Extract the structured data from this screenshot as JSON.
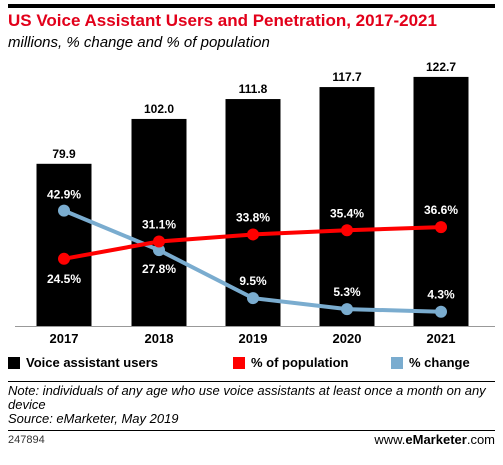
{
  "title": "US Voice Assistant Users and Penetration, 2017-2021",
  "subtitle": "millions, % change and % of population",
  "chart_data": {
    "type": "bar",
    "categories": [
      "2017",
      "2018",
      "2019",
      "2020",
      "2021"
    ],
    "series": [
      {
        "name": "Voice assistant users",
        "type": "bar",
        "color": "#000000",
        "values": [
          79.9,
          102.0,
          111.8,
          117.7,
          122.7
        ],
        "labels": [
          "79.9",
          "102.0",
          "111.8",
          "117.7",
          "122.7"
        ]
      },
      {
        "name": "% of population",
        "type": "line",
        "color": "#ff0000",
        "values": [
          24.5,
          31.1,
          33.8,
          35.4,
          36.6
        ],
        "labels": [
          "24.5%",
          "31.1%",
          "33.8%",
          "35.4%",
          "36.6%"
        ]
      },
      {
        "name": "% change",
        "type": "line",
        "color": "#7aaccf",
        "values": [
          42.9,
          27.8,
          9.5,
          5.3,
          4.3
        ],
        "labels": [
          "42.9%",
          "27.8%",
          "9.5%",
          "5.3%",
          "4.3%"
        ]
      }
    ],
    "legend_position": "bottom",
    "grid": false
  },
  "legend": {
    "users": "Voice assistant users",
    "population": "% of population",
    "change": "% change"
  },
  "note": "Note: individuals of any age who use voice assistants at least once a month on any device",
  "source": "Source: eMarketer, May 2019",
  "chart_id": "247894",
  "brand": {
    "prefix": "www.",
    "name": "eMarketer",
    "suffix": ".com"
  }
}
